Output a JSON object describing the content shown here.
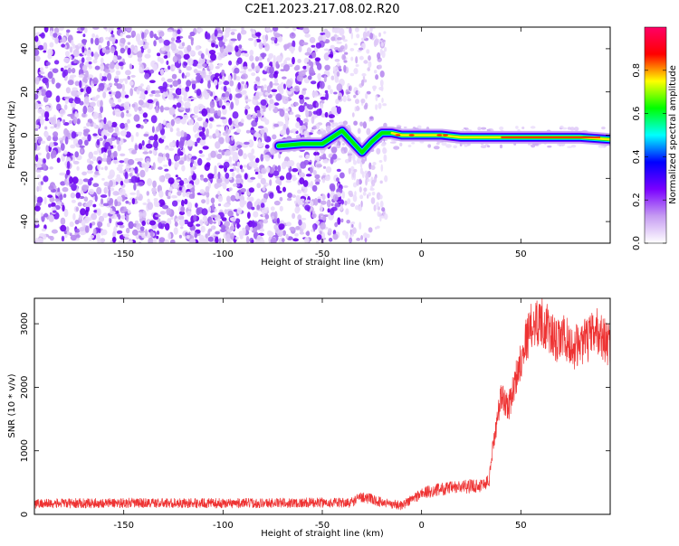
{
  "title": "C2E1.2023.217.08.02.R20",
  "colorbar": {
    "label": "Normalized spectral amplitude",
    "ticks": [
      "0.0",
      "0.2",
      "0.4",
      "0.6",
      "0.8"
    ],
    "colors": [
      "#ffffff",
      "#c69cf2",
      "#7a00ff",
      "#0000ff",
      "#00ffff",
      "#00ff00",
      "#ffff00",
      "#ff0000",
      "#ff0066"
    ]
  },
  "chart_data": [
    {
      "type": "heatmap",
      "xlabel": "Height of straight line (km)",
      "ylabel": "Frequency (Hz)",
      "xlim": [
        -195,
        95
      ],
      "ylim": [
        -50,
        50
      ],
      "x_ticks": [
        "-150",
        "-100",
        "-50",
        "0",
        "50"
      ],
      "y_ticks": [
        "-40",
        "-20",
        "0",
        "20",
        "40"
      ],
      "ridge": {
        "x": [
          -72,
          -60,
          -50,
          -40,
          -35,
          -30,
          -25,
          -20,
          -15,
          -10,
          0,
          10,
          20,
          40,
          60,
          80,
          95
        ],
        "freq": [
          -5,
          -4,
          -4,
          2,
          -3,
          -8,
          -3,
          1,
          1,
          0,
          0,
          0,
          -1,
          -1,
          -1,
          -1,
          -2
        ]
      },
      "noise_region_x": [
        -195,
        -40
      ]
    },
    {
      "type": "line",
      "xlabel": "Height of straight line (km)",
      "ylabel": "SNR (10 * v/v)",
      "xlim": [
        -195,
        95
      ],
      "ylim": [
        0,
        3400
      ],
      "x_ticks": [
        "-150",
        "-100",
        "-50",
        "0",
        "50"
      ],
      "y_ticks": [
        "0",
        "1000",
        "2000",
        "3000"
      ],
      "series": [
        {
          "color": "#ee3333",
          "x": [
            -195,
            -150,
            -100,
            -50,
            -36,
            -30,
            -20,
            -10,
            0,
            10,
            20,
            30,
            34,
            36,
            40,
            44,
            48,
            52,
            56,
            60,
            64,
            68,
            72,
            76,
            80,
            84,
            88,
            95
          ],
          "y": [
            170,
            180,
            175,
            185,
            180,
            280,
            190,
            140,
            330,
            400,
            430,
            460,
            520,
            1100,
            1850,
            1700,
            2200,
            2700,
            3000,
            3050,
            2900,
            2700,
            2800,
            2600,
            2700,
            2750,
            2900,
            2650
          ]
        }
      ]
    }
  ]
}
